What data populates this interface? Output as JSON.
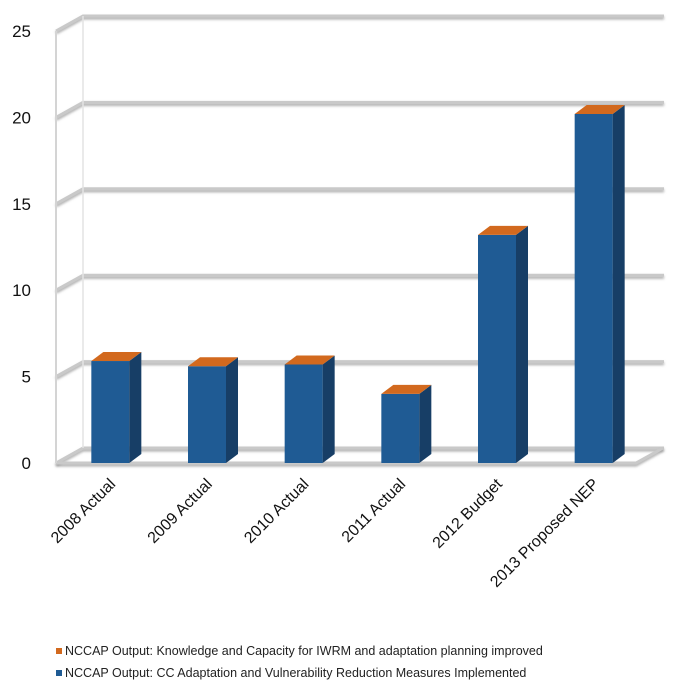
{
  "chart_data": {
    "type": "bar",
    "title": "",
    "xlabel": "",
    "ylabel": "",
    "categories": [
      "2008 Actual",
      "2009 Actual",
      "2010 Actual",
      "2011 Actual",
      "2012 Budget",
      "2013 Proposed NEP"
    ],
    "ylim": [
      0,
      25
    ],
    "yticks": [
      0,
      5,
      10,
      15,
      20,
      25
    ],
    "grid": true,
    "stacked": true,
    "three_d": true,
    "legend_position": "bottom",
    "series": [
      {
        "name": "NCCAP Output: CC Adaptation and Vulnerability Reduction Measures Implemented",
        "color": "#1f5b94",
        "values": [
          5.9,
          5.6,
          5.7,
          4.0,
          13.2,
          20.2
        ]
      },
      {
        "name": "NCCAP Output: Knowledge and Capacity for IWRM and adaptation planning improved",
        "color": "#d2691e",
        "values": [
          0,
          0,
          0,
          0,
          0,
          0
        ]
      }
    ],
    "legend": [
      {
        "name": "NCCAP Output: Knowledge and Capacity for IWRM and adaptation planning improved",
        "color": "#d2691e"
      },
      {
        "name": "NCCAP Output: CC Adaptation and Vulnerability Reduction Measures Implemented",
        "color": "#1f5b94"
      }
    ]
  }
}
